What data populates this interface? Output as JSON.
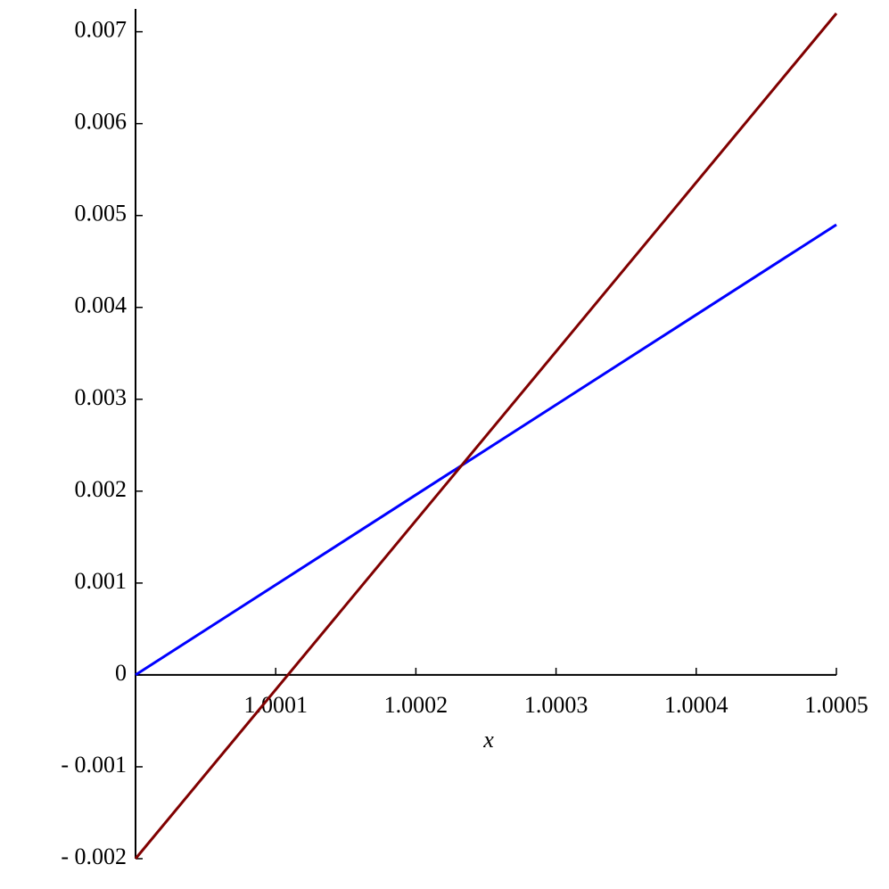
{
  "chart_data": {
    "type": "line",
    "xlabel": "x",
    "xlim": [
      1,
      1.0005
    ],
    "xticks": [
      1.0001,
      1.0002,
      1.0003,
      1.0004,
      1.0005
    ],
    "ylim": [
      -0.002,
      0.0072
    ],
    "yticks": [
      {
        "value": -0.002,
        "label": "- 0.002"
      },
      {
        "value": -0.001,
        "label": "- 0.001"
      },
      0,
      0.001,
      0.002,
      0.003,
      0.004,
      0.005,
      0.006,
      0.007
    ],
    "series": [
      {
        "color": "#0000ff",
        "x": [
          1,
          1.0005
        ],
        "values": [
          0,
          0.0049
        ]
      },
      {
        "color": "#800000",
        "x": [
          1,
          1.0005
        ],
        "values": [
          -0.002,
          0.0072
        ]
      }
    ]
  }
}
